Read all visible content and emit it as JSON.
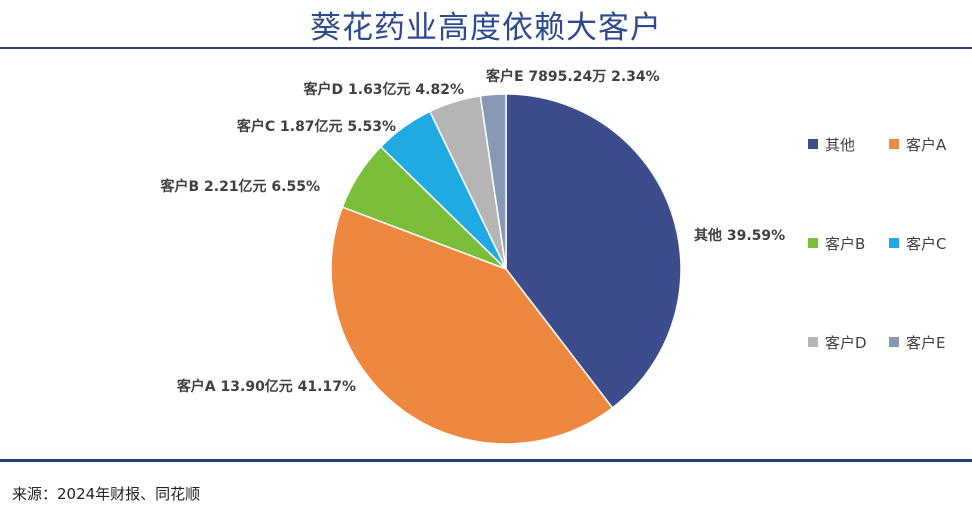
{
  "page": {
    "title": "葵花药业高度依赖大客户",
    "source": "来源：2024年财报、同花顺"
  },
  "chart_data": {
    "type": "pie",
    "title": "葵花药业高度依赖大客户",
    "slices": [
      {
        "name": "其他",
        "value": 39.59,
        "label": "其他 39.59%",
        "color": "#3C4C8C"
      },
      {
        "name": "客户A",
        "value": 41.17,
        "label": "客户A 13.90亿元 41.17%",
        "color": "#EE883F"
      },
      {
        "name": "客户B",
        "value": 6.55,
        "label": "客户B 2.21亿元 6.55%",
        "color": "#7BBE3A"
      },
      {
        "name": "客户C",
        "value": 5.53,
        "label": "客户C 1.87亿元 5.53%",
        "color": "#20AAE2"
      },
      {
        "name": "客户D",
        "value": 4.82,
        "label": "客户D 1.63亿元 4.82%",
        "color": "#B5B5B5"
      },
      {
        "name": "客户E",
        "value": 2.34,
        "label": "客户E 7895.24万 2.34%",
        "color": "#8799B4"
      }
    ],
    "legend": {
      "placement": "right",
      "items": [
        "其他",
        "客户A",
        "客户B",
        "客户C",
        "客户D",
        "客户E"
      ]
    }
  }
}
